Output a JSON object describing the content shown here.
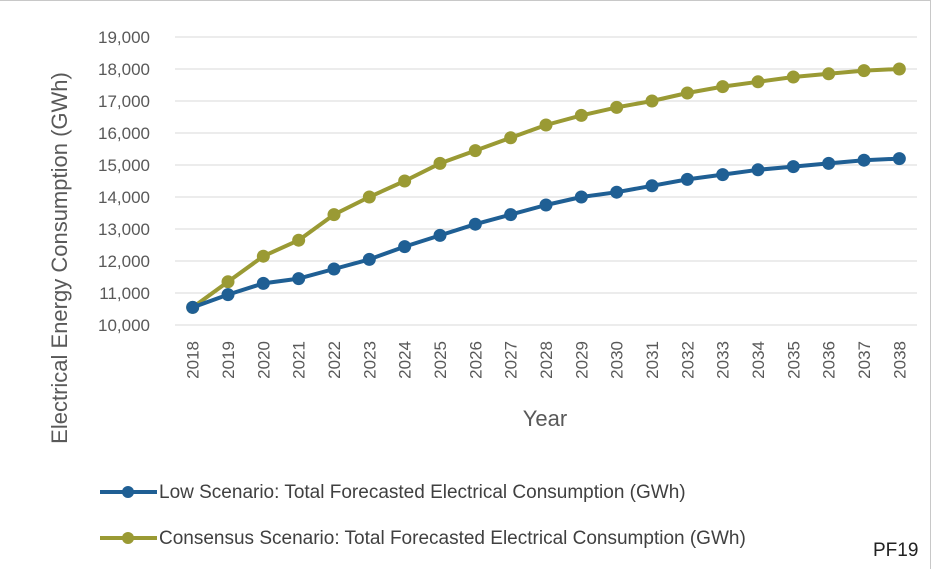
{
  "chart_data": {
    "type": "line",
    "xlabel": "Year",
    "ylabel": "Electrical Energy Consumption (GWh)",
    "x": [
      "2018",
      "2019",
      "2020",
      "2021",
      "2022",
      "2023",
      "2024",
      "2025",
      "2026",
      "2027",
      "2028",
      "2029",
      "2030",
      "2031",
      "2032",
      "2033",
      "2034",
      "2035",
      "2036",
      "2037",
      "2038"
    ],
    "ylim": [
      10000,
      19000
    ],
    "yticks": [
      10000,
      11000,
      12000,
      13000,
      14000,
      15000,
      16000,
      17000,
      18000,
      19000
    ],
    "ytick_labels": [
      "10,000",
      "11,000",
      "12,000",
      "13,000",
      "14,000",
      "15,000",
      "16,000",
      "17,000",
      "18,000",
      "19,000"
    ],
    "grid": true,
    "legend_position": "bottom",
    "series": [
      {
        "name": "Low Scenario: Total Forecasted Electrical Consumption (GWh)",
        "color": "#1f5f94",
        "values": [
          10550,
          10950,
          11300,
          11450,
          11750,
          12050,
          12450,
          12800,
          13150,
          13450,
          13750,
          14000,
          14150,
          14350,
          14550,
          14700,
          14850,
          14950,
          15050,
          15150,
          15200
        ]
      },
      {
        "name": "Consensus Scenario: Total Forecasted Electrical Consumption (GWh)",
        "color": "#9a9a34",
        "values": [
          10550,
          11350,
          12150,
          12650,
          13450,
          14000,
          14500,
          15050,
          15450,
          15850,
          16250,
          16550,
          16800,
          17000,
          17250,
          17450,
          17600,
          17750,
          17850,
          17950,
          18000
        ]
      }
    ]
  },
  "figure_code": "PF19"
}
